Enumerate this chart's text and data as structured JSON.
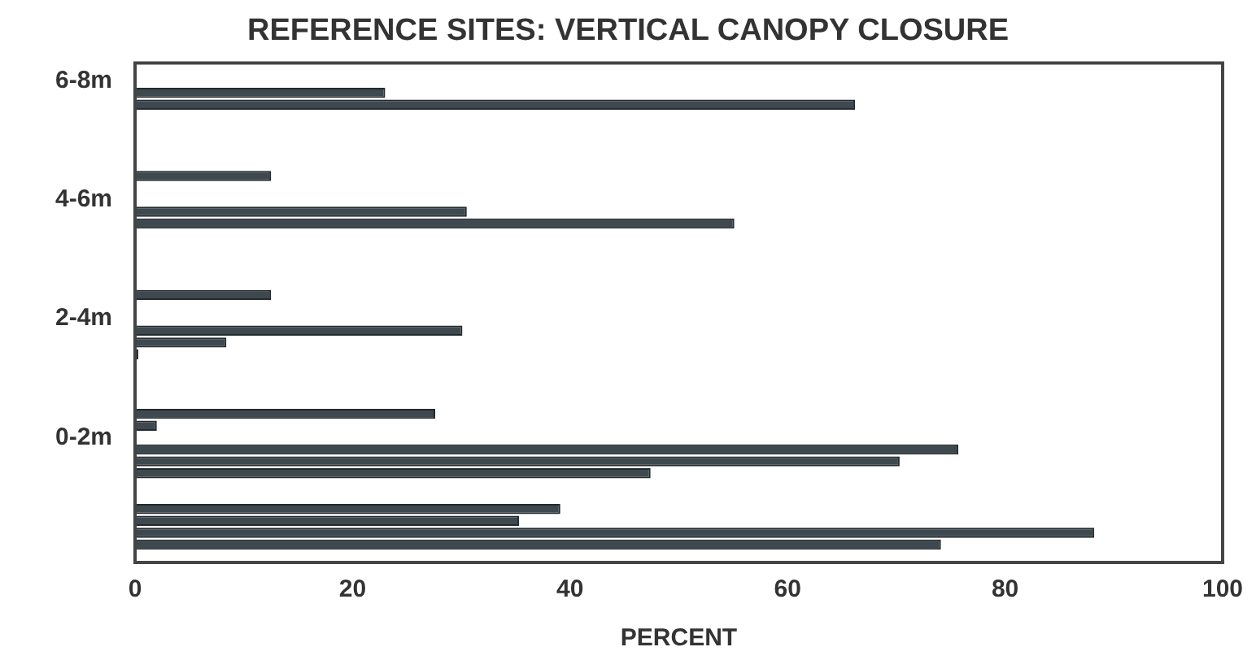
{
  "chart_data": {
    "type": "bar",
    "orientation": "horizontal",
    "title": "REFERENCE SITES: VERTICAL CANOPY CLOSURE",
    "xlabel": "PERCENT",
    "categories": [
      null,
      "6-8m",
      null,
      null,
      null,
      null,
      null,
      null,
      null,
      null,
      null,
      "4-6m",
      null,
      null,
      null,
      null,
      null,
      null,
      null,
      null,
      null,
      "2-4m",
      null,
      null,
      null,
      null,
      null,
      null,
      null,
      null,
      null,
      "0-2m",
      null,
      null,
      null,
      null,
      null,
      null,
      null,
      null,
      null,
      null
    ],
    "values": [
      null,
      null,
      23.0,
      66.2,
      null,
      null,
      null,
      null,
      null,
      12.5,
      null,
      null,
      30.5,
      55.1,
      null,
      null,
      null,
      null,
      null,
      12.5,
      null,
      null,
      30.1,
      8.4,
      0.3,
      null,
      null,
      null,
      null,
      27.6,
      2.0,
      null,
      75.7,
      70.3,
      47.4,
      null,
      null,
      39.1,
      35.3,
      88.2,
      74.1,
      null
    ],
    "color": "#2f3b42",
    "xlim": [
      0,
      100
    ],
    "xticks": [
      0,
      20,
      40,
      60,
      80,
      100
    ],
    "grid": false,
    "legend": false
  }
}
